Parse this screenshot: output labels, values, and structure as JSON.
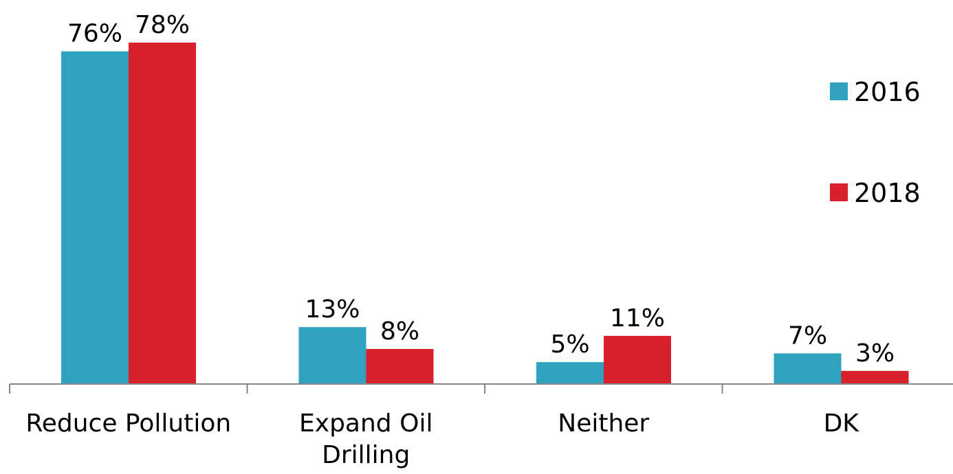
{
  "chart_data": {
    "type": "bar",
    "categories": [
      [
        "Reduce Pollution"
      ],
      [
        "Expand Oil",
        "Drilling"
      ],
      [
        "Neither"
      ],
      [
        "DK"
      ]
    ],
    "series": [
      {
        "name": "2016",
        "color": "#2FA3BE",
        "values": [
          76,
          13,
          5,
          7
        ],
        "labels": [
          "76%",
          "13%",
          "5%",
          "7%"
        ]
      },
      {
        "name": "2018",
        "color": "#D9212B",
        "values": [
          78,
          8,
          11,
          3
        ],
        "labels": [
          "78%",
          "8%",
          "11%",
          "3%"
        ]
      }
    ],
    "title": "",
    "xlabel": "",
    "ylabel": "",
    "ylim": [
      0,
      80
    ],
    "grid": false,
    "legend_position": "right"
  }
}
